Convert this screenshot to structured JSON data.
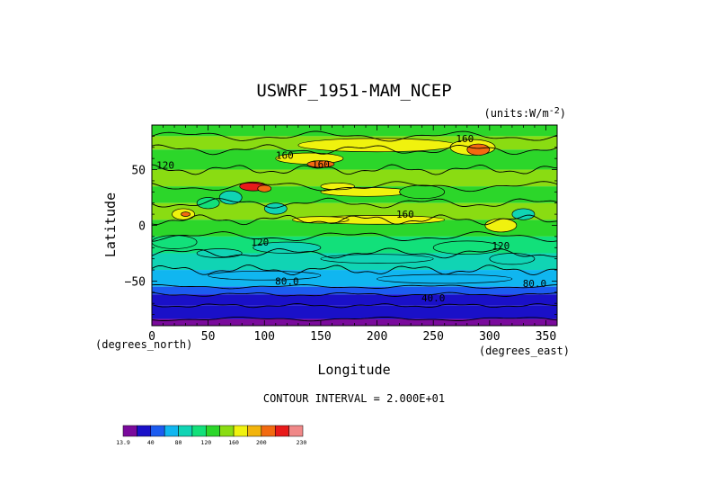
{
  "chart_data": {
    "type": "heatmap",
    "title": "USWRF_1951-MAM_NCEP",
    "units": "(units:W/m^2)",
    "units_parts": {
      "prefix": "(units:W/m",
      "sup": "-2",
      "suffix": ")"
    },
    "xlabel": "Longitude",
    "ylabel": "Latitude",
    "x_axis_note": "(degrees_north)",
    "x_axis_unit": "(degrees_east)",
    "xlim": [
      0,
      360
    ],
    "ylim": [
      -90,
      90
    ],
    "x_ticks": [
      "0",
      "50",
      "100",
      "150",
      "200",
      "250",
      "300",
      "350"
    ],
    "y_ticks": [
      "50",
      "0",
      "−50"
    ],
    "contour_interval": "CONTOUR INTERVAL = 2.000E+01",
    "contour_labels": [
      {
        "text": "160",
        "lon": 278,
        "lat": 78
      },
      {
        "text": "160",
        "lon": 118,
        "lat": 63
      },
      {
        "text": "160",
        "lon": 150,
        "lat": 55
      },
      {
        "text": "120",
        "lon": 12,
        "lat": 54
      },
      {
        "text": "160",
        "lon": 225,
        "lat": 10
      },
      {
        "text": "120",
        "lon": 96,
        "lat": -15
      },
      {
        "text": "120",
        "lon": 310,
        "lat": -18
      },
      {
        "text": "80.0",
        "lon": 120,
        "lat": -50
      },
      {
        "text": "80.0",
        "lon": 340,
        "lat": -52
      },
      {
        "text": "40.0",
        "lon": 250,
        "lat": -65
      }
    ],
    "colorbar": {
      "labels": [
        "13.9",
        "40",
        "80",
        "120",
        "160",
        "200",
        "230"
      ],
      "colors": [
        "#7a0a9c",
        "#1a10c8",
        "#1c5cf0",
        "#10b6f0",
        "#10d4b4",
        "#12e07a",
        "#2cd62a",
        "#8adc12",
        "#f0f20e",
        "#f2b40c",
        "#f26a10",
        "#e81a1a",
        "#f08888"
      ]
    },
    "color_levels": {
      "polar_south": "#7a0a9c",
      "deep_blue": "#1a10c8",
      "blue": "#1c5cf0",
      "cyan": "#10b6f0",
      "teal": "#10d4b4",
      "green": "#12e07a",
      "bright_green": "#2cd62a",
      "yellow_green": "#8adc12",
      "yellow": "#f0f20e",
      "orange": "#f26a10",
      "red": "#e81a1a"
    }
  }
}
